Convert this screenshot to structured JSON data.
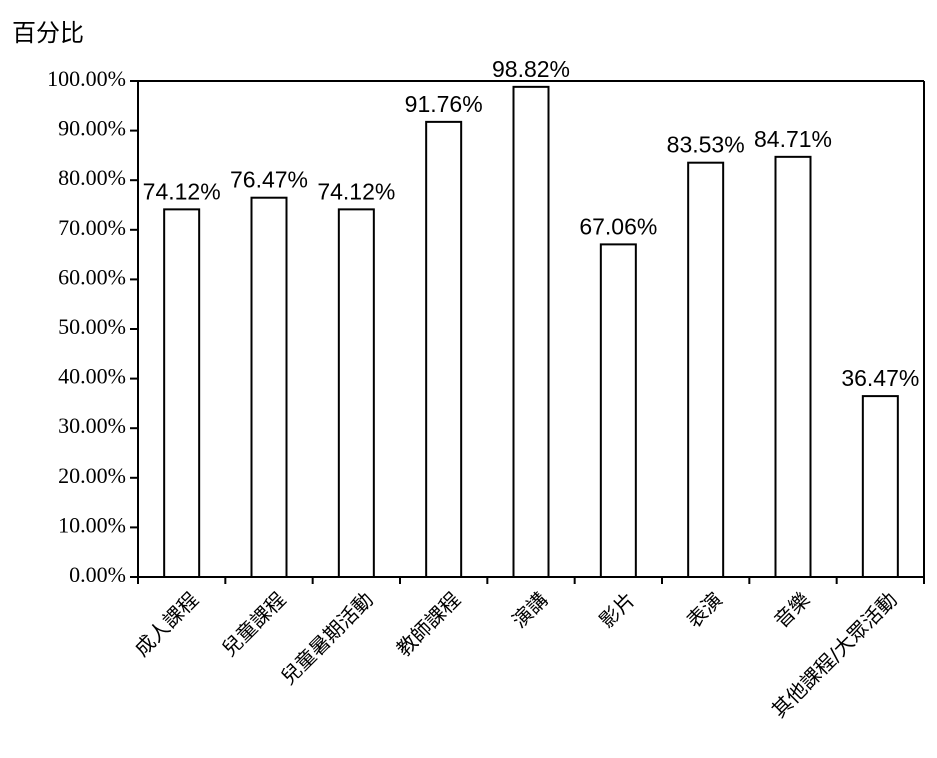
{
  "chart_data": {
    "type": "bar",
    "ylabel": "百分比",
    "xlabel": "",
    "categories": [
      "成人課程",
      "兒童課程",
      "兒童暑期活動",
      "教師課程",
      "演講",
      "影片",
      "表演",
      "音樂",
      "其他課程/大眾活動"
    ],
    "values": [
      74.12,
      76.47,
      74.12,
      91.76,
      98.82,
      67.06,
      83.53,
      84.71,
      36.47
    ],
    "data_labels": [
      "74.12%",
      "76.47%",
      "74.12%",
      "91.76%",
      "98.82%",
      "67.06%",
      "83.53%",
      "84.71%",
      "36.47%"
    ],
    "ylim": [
      0,
      100
    ],
    "yticks": [
      0,
      10,
      20,
      30,
      40,
      50,
      60,
      70,
      80,
      90,
      100
    ],
    "ytick_labels": [
      "0.00%",
      "10.00%",
      "20.00%",
      "30.00%",
      "40.00%",
      "50.00%",
      "60.00%",
      "70.00%",
      "80.00%",
      "90.00%",
      "100.00%"
    ],
    "grid": false,
    "legend": "none",
    "colors": {
      "bar_fill": "#ffffff",
      "bar_stroke": "#000000",
      "axis": "#000000",
      "text": "#000000"
    }
  }
}
